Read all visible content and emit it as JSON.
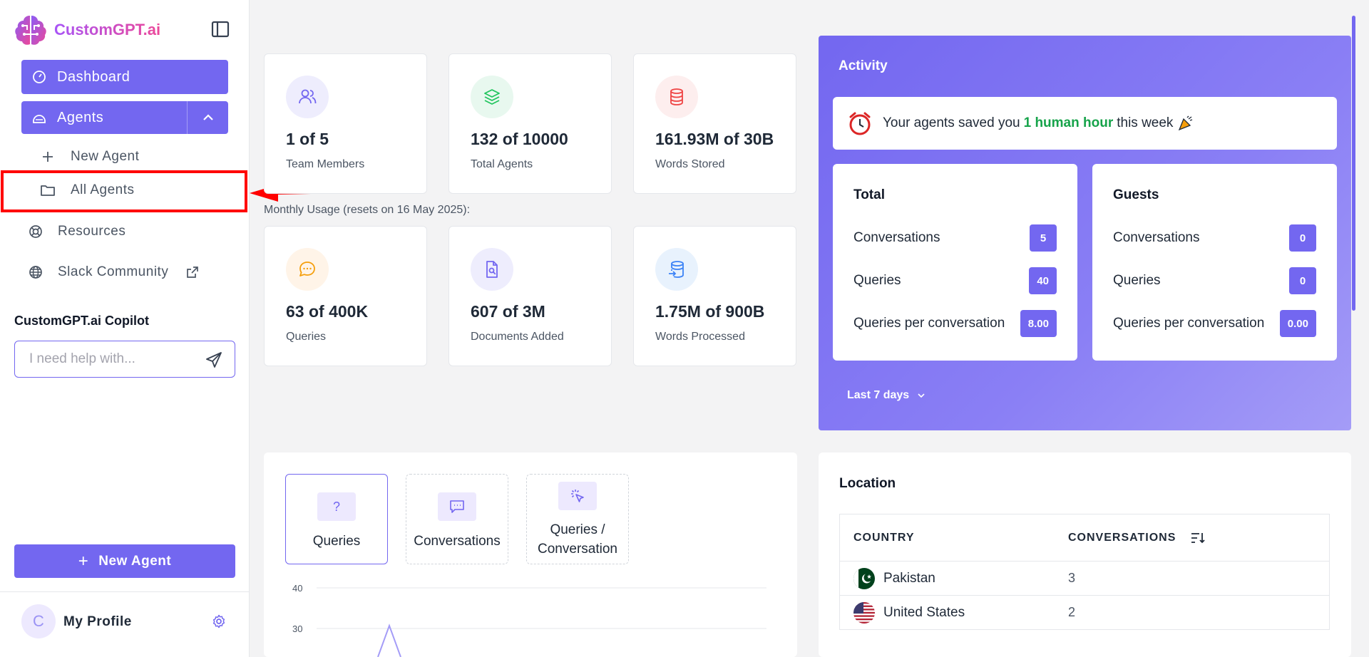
{
  "sidebar": {
    "brand": "CustomGPT.ai",
    "nav": {
      "dashboard": "Dashboard",
      "agents": "Agents",
      "new_agent": "New Agent",
      "all_agents": "All Agents",
      "resources": "Resources",
      "slack": "Slack Community"
    },
    "copilot": {
      "title": "CustomGPT.ai Copilot",
      "placeholder": "I need help with..."
    },
    "new_agent_button": "New Agent",
    "profile": {
      "initial": "C",
      "name": "My Profile"
    }
  },
  "stats": [
    {
      "value": "1 of 5",
      "label": "Team Members"
    },
    {
      "value": "132 of 10000",
      "label": "Total Agents"
    },
    {
      "value": "161.93M of 30B",
      "label": "Words Stored"
    }
  ],
  "monthly_usage_label": "Monthly Usage (resets on 16 May 2025):",
  "usage": [
    {
      "value": "63 of 400K",
      "label": "Queries"
    },
    {
      "value": "607 of 3M",
      "label": "Documents Added"
    },
    {
      "value": "1.75M of 900B",
      "label": "Words Processed"
    }
  ],
  "activity": {
    "title": "Activity",
    "saved_prefix": "Your agents saved you",
    "saved_highlight": "1 human hour",
    "saved_suffix": "this week",
    "total": {
      "title": "Total",
      "rows": [
        {
          "label": "Conversations",
          "value": "5"
        },
        {
          "label": "Queries",
          "value": "40"
        },
        {
          "label": "Queries per conversation",
          "value": "8.00"
        }
      ]
    },
    "guests": {
      "title": "Guests",
      "rows": [
        {
          "label": "Conversations",
          "value": "0"
        },
        {
          "label": "Queries",
          "value": "0"
        },
        {
          "label": "Queries per conversation",
          "value": "0.00"
        }
      ]
    },
    "range": "Last 7 days"
  },
  "chart_tabs": [
    {
      "label": "Queries",
      "icon": "question-icon",
      "glyph": "?"
    },
    {
      "label": "Conversations",
      "icon": "chat-icon"
    },
    {
      "label": "Queries /\nConversation",
      "icon": "cursor-click-icon"
    }
  ],
  "chart_data": {
    "type": "line",
    "y_ticks": [
      "40",
      "30"
    ],
    "ylim": [
      30,
      40
    ]
  },
  "location": {
    "title": "Location",
    "columns": [
      "COUNTRY",
      "CONVERSATIONS"
    ],
    "rows": [
      {
        "country": "Pakistan",
        "conversations": "3"
      },
      {
        "country": "United States",
        "conversations": "2"
      }
    ]
  },
  "colors": {
    "accent": "#7367f0",
    "highlight_green": "#16a34a",
    "annotation_red": "#ff0000"
  }
}
